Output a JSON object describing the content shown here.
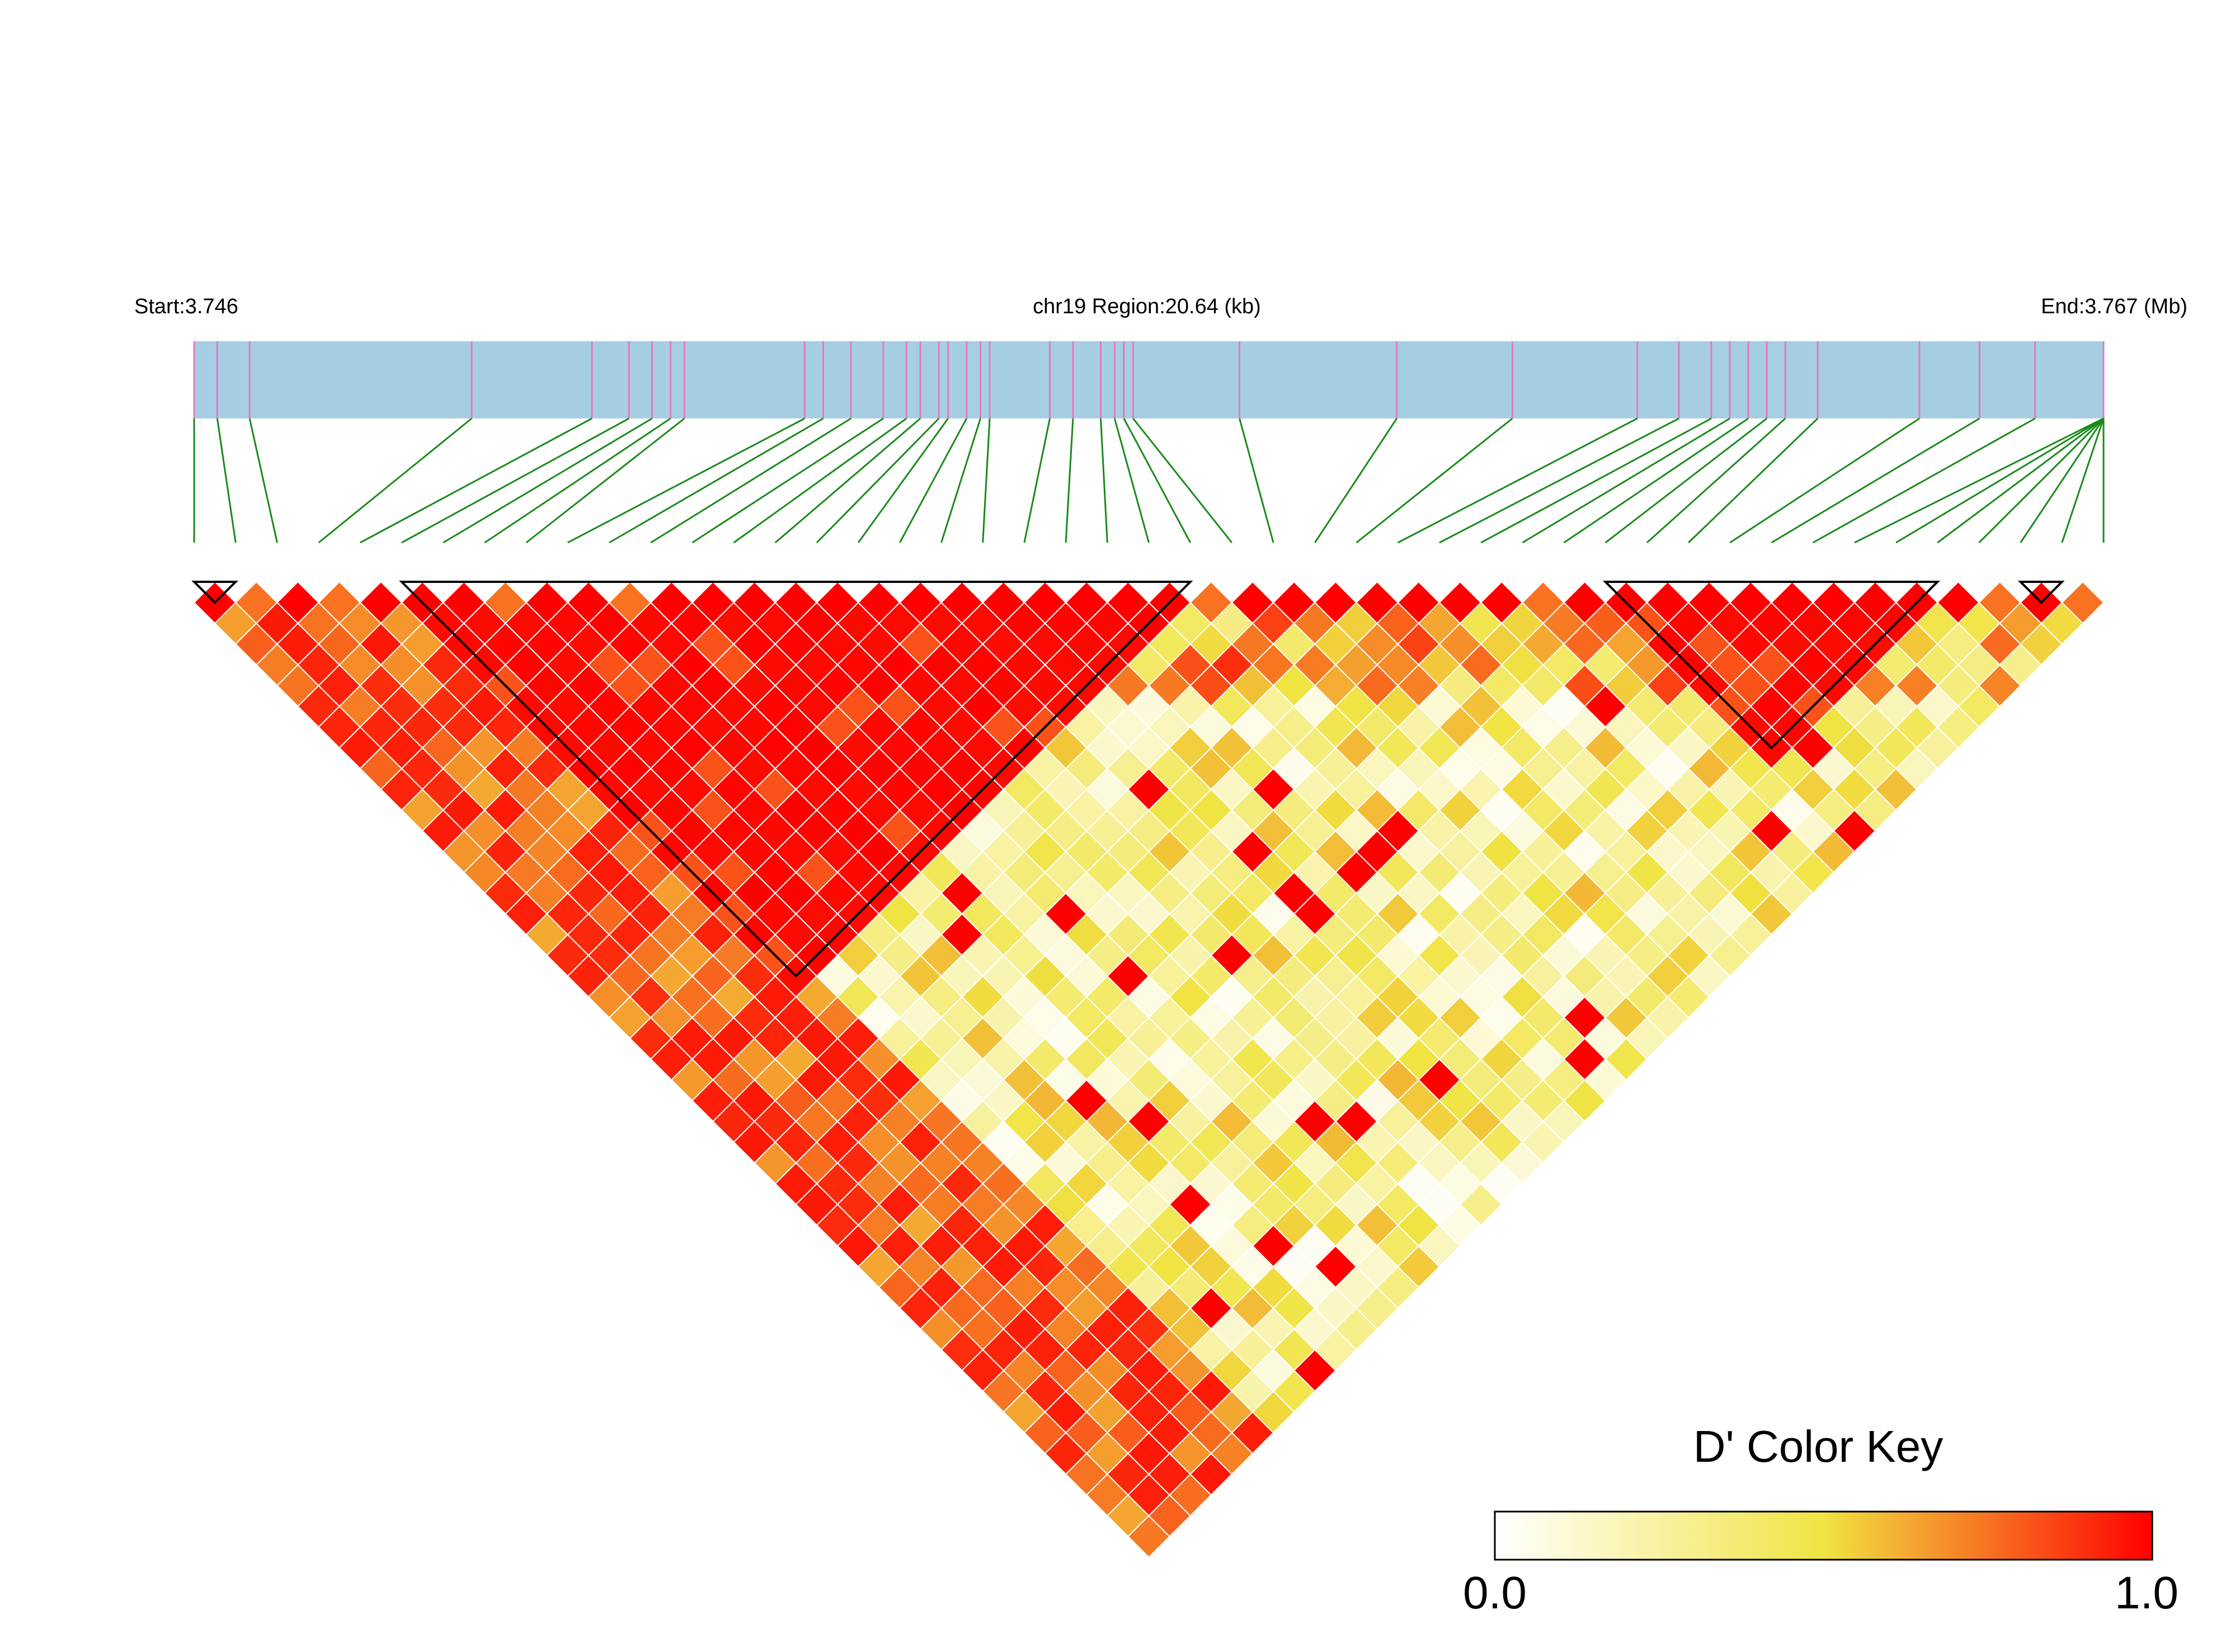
{
  "header": {
    "start_label": "Start:3.746",
    "region_label": "chr19 Region:20.64 (kb)",
    "end_label": "End:3.767 (Mb)"
  },
  "color_key": {
    "title": "D' Color Key",
    "min_label": "0.0",
    "max_label": "1.0",
    "stops": [
      "#ffffff",
      "#f0e442",
      "#ff0000"
    ]
  },
  "colors": {
    "track": "#a6cee3",
    "snp_tick": "#e377c2",
    "connector": "#1a8a1a",
    "cell_border": "#ffffff",
    "block_outline": "#000000"
  },
  "chart_data": {
    "type": "heatmap",
    "title": "chr19 Region:20.64 (kb)",
    "region_start_mb": 3.746,
    "region_end_mb": 3.767,
    "region_length_kb": 20.64,
    "measure": "D'",
    "value_range": [
      0.0,
      1.0
    ],
    "snp_count": 47,
    "snp_positions_kb": [
      0.0,
      0.25,
      0.6,
      3.0,
      4.3,
      4.7,
      4.95,
      5.15,
      5.3,
      6.6,
      6.8,
      7.1,
      7.45,
      7.7,
      7.85,
      8.05,
      8.15,
      8.35,
      8.5,
      8.6,
      9.25,
      9.5,
      9.8,
      9.95,
      10.05,
      10.15,
      11.3,
      13.0,
      14.25,
      15.6,
      16.05,
      16.4,
      16.6,
      16.8,
      17.0,
      17.2,
      17.55,
      18.65,
      19.3,
      19.9,
      20.64,
      20.64,
      20.64,
      20.64,
      20.64,
      20.64,
      20.64
    ],
    "haplotype_blocks": [
      [
        1,
        2
      ],
      [
        6,
        25
      ],
      [
        35,
        43
      ],
      [
        45,
        46
      ]
    ]
  }
}
